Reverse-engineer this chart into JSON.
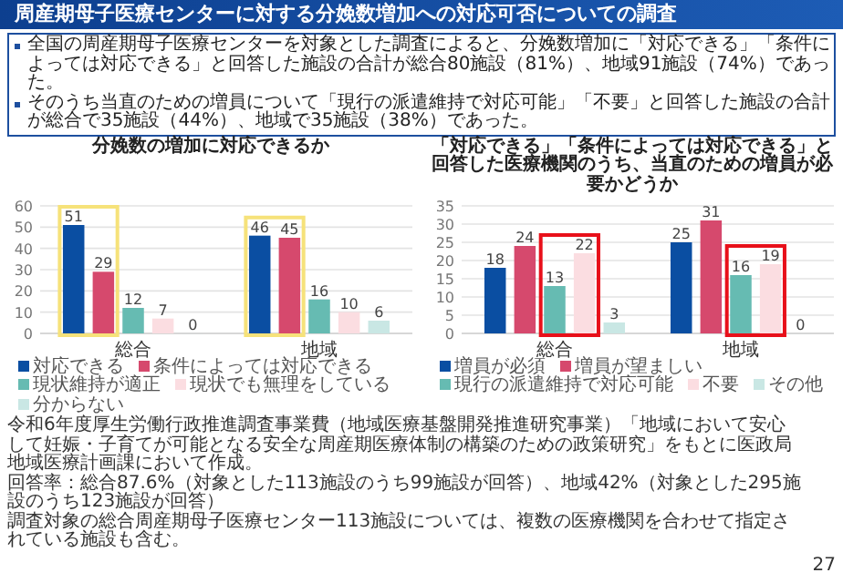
{
  "chart_data": [
    {
      "type": "bar",
      "title": "分娩数の増加に対応できるか",
      "categories": [
        "総合",
        "地域"
      ],
      "series": [
        {
          "name": "対応できる",
          "color": "#0a4ea2",
          "values": [
            51,
            46
          ]
        },
        {
          "name": "条件によっては対応できる",
          "color": "#d6496d",
          "values": [
            29,
            45
          ]
        },
        {
          "name": "現状維持が適正",
          "color": "#66bbb2",
          "values": [
            12,
            16
          ]
        },
        {
          "name": "現状でも無理をしている",
          "color": "#fbdde1",
          "values": [
            7,
            10
          ]
        },
        {
          "name": "分からない",
          "color": "#c9e7e4",
          "values": [
            0,
            6
          ]
        }
      ],
      "ylim": [
        0,
        60
      ],
      "yticks": [
        0,
        10,
        20,
        30,
        40,
        50,
        60
      ],
      "grid": "y",
      "legend": "bottom",
      "data_labels": true,
      "annotations": [
        "周産期母子医療センターに対する分娩数増加への対応可否についての調査",
        "全国の周産期母子医療センターを対象とした調査によると、分娩数増加に「対応できる」「条件によっては対応できる」と回答した施設の合計が総合80施設（81%）、地域91施設（74%）であった。",
        "そのうち当直のための増員について「現行の派遣維持で対応可能」「不要」と回答した施設の合計が総合で35施設（44%）、地域で35施設（38%）であった。",
        "令和6年度厚生労働行政推進調査事業費（地域医療基盤開発推進研究事業）「地域において安心して妊娠・子育てが可能となる安全な周産期医療体制の構築のための政策研究」をもとに医政局地域医療計画課において作成。",
        "回答率：総合87.6%（対象とした113施設のうち99施設が回答）、地域42%（対象とした295施設のうち123施設が回答）",
        "調査対象の総合周産期母子医療センター113施設については、複数の医療機関を合わせて指定されている施設も含む。",
        "27"
      ]
    },
    {
      "type": "bar",
      "title": "「対応できる」「条件によっては対応できる」と回答した医療機関のうち、当直のための増員が必要かどうか",
      "categories": [
        "総合",
        "地域"
      ],
      "series": [
        {
          "name": "増員が必須",
          "color": "#0a4ea2",
          "values": [
            18,
            25
          ]
        },
        {
          "name": "増員が望ましい",
          "color": "#d6496d",
          "values": [
            24,
            31
          ]
        },
        {
          "name": "現行の派遣維持で対応可能",
          "color": "#66bbb2",
          "values": [
            13,
            16
          ]
        },
        {
          "name": "不要",
          "color": "#fbdde1",
          "values": [
            22,
            19
          ]
        },
        {
          "name": "その他",
          "color": "#c9e7e4",
          "values": [
            3,
            0
          ]
        }
      ],
      "ylim": [
        0,
        35
      ],
      "yticks": [
        0,
        5,
        10,
        15,
        20,
        25,
        30,
        35
      ],
      "grid": "y",
      "legend": "bottom",
      "data_labels": true
    }
  ]
}
